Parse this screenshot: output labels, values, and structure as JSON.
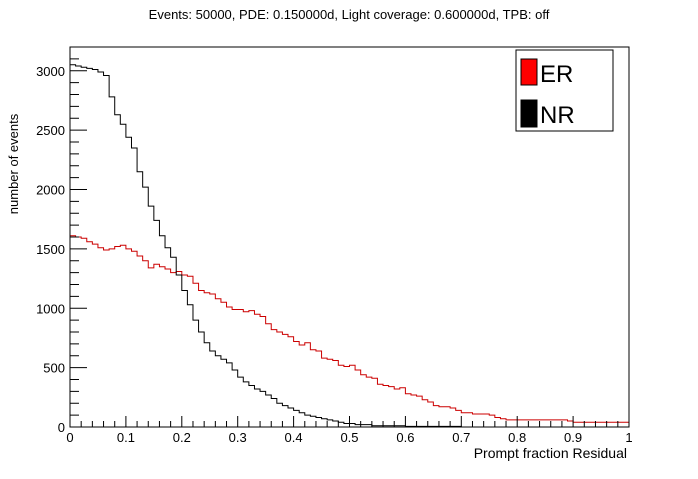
{
  "chart_data": {
    "type": "histogram",
    "title": "Events: 50000, PDE: 0.150000d, Light coverage: 0.600000d, TPB: off",
    "xlabel": "Prompt fraction Residual",
    "ylabel": "number of events",
    "xlim": [
      0,
      1
    ],
    "ylim": [
      0,
      3200
    ],
    "bin_width": 0.01,
    "x_ticks": [
      "0",
      "0.1",
      "0.2",
      "0.3",
      "0.4",
      "0.5",
      "0.6",
      "0.7",
      "0.8",
      "0.9",
      "1"
    ],
    "y_ticks": [
      "0",
      "500",
      "1000",
      "1500",
      "2000",
      "2500",
      "3000"
    ],
    "legend": {
      "position": "top-right"
    },
    "series": [
      {
        "name": "ER",
        "color": "#cc0000",
        "legend_color": "#ff0000",
        "values": [
          1610,
          1600,
          1590,
          1560,
          1540,
          1510,
          1490,
          1500,
          1520,
          1530,
          1500,
          1480,
          1440,
          1400,
          1340,
          1370,
          1350,
          1330,
          1300,
          1310,
          1280,
          1270,
          1210,
          1150,
          1130,
          1120,
          1080,
          1050,
          1010,
          990,
          990,
          970,
          980,
          950,
          930,
          870,
          820,
          800,
          780,
          760,
          720,
          690,
          710,
          650,
          640,
          580,
          570,
          560,
          520,
          510,
          520,
          480,
          440,
          420,
          410,
          360,
          350,
          340,
          320,
          330,
          280,
          270,
          260,
          230,
          210,
          180,
          170,
          170,
          160,
          140,
          120,
          120,
          110,
          110,
          110,
          100,
          80,
          70,
          60,
          60,
          60,
          60,
          60,
          60,
          60,
          60,
          60,
          60,
          60,
          50,
          40,
          40,
          40,
          40,
          40,
          40,
          40,
          40,
          40,
          40
        ]
      },
      {
        "name": "NR",
        "color": "#000000",
        "legend_color": "#000000",
        "values": [
          3050,
          3040,
          3030,
          3020,
          3010,
          2990,
          2960,
          2780,
          2630,
          2550,
          2440,
          2350,
          2150,
          2020,
          1860,
          1740,
          1610,
          1510,
          1430,
          1280,
          1150,
          1030,
          900,
          800,
          710,
          640,
          600,
          570,
          540,
          480,
          420,
          380,
          350,
          320,
          300,
          270,
          240,
          200,
          180,
          160,
          140,
          120,
          100,
          90,
          80,
          70,
          60,
          50,
          40,
          30,
          30,
          20,
          20,
          20,
          10,
          10,
          10,
          10,
          10,
          10,
          5,
          5,
          5,
          5,
          5,
          5,
          5,
          5,
          5,
          5,
          0,
          0,
          0,
          0,
          0,
          0,
          0,
          0,
          0,
          0,
          0,
          0,
          0,
          0,
          0,
          0,
          0,
          0,
          0,
          0,
          0,
          0,
          0,
          0,
          0,
          0,
          0,
          0,
          0,
          0
        ]
      }
    ]
  }
}
